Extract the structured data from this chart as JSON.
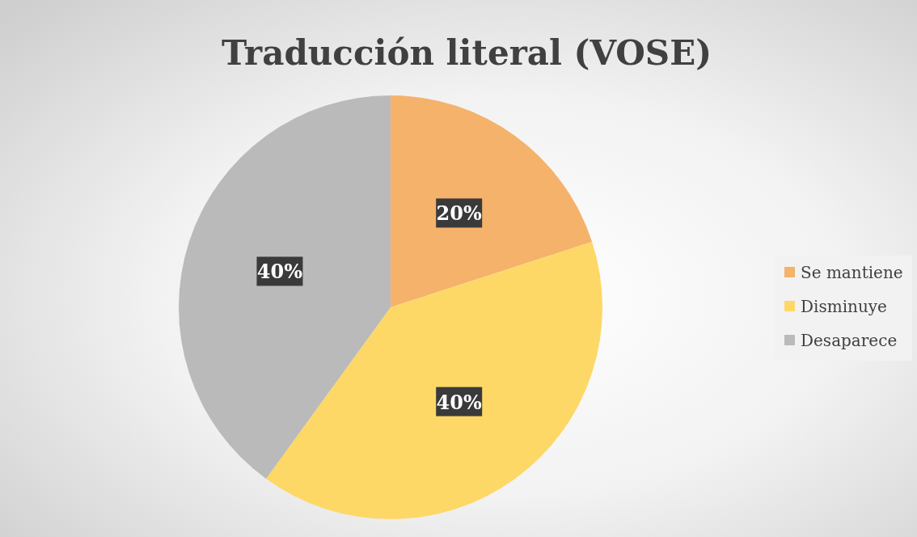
{
  "chart_data": {
    "type": "pie",
    "title": "Traducción literal (VOSE)",
    "categories": [
      "Se mantiene",
      "Disminuye",
      "Desaparece"
    ],
    "values": [
      20,
      40,
      40
    ],
    "colors": [
      "#f5b26b",
      "#fdd866",
      "#bababa"
    ],
    "value_labels": [
      "20%",
      "40%",
      "40%"
    ],
    "legend": "right"
  }
}
